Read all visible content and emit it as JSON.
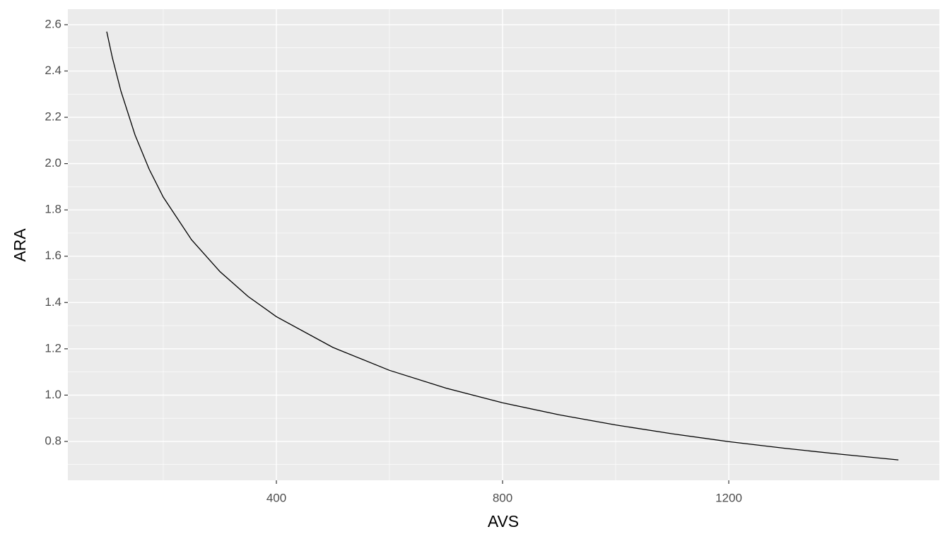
{
  "chart_data": {
    "type": "line",
    "x_label": "AVS",
    "y_label": "ARA",
    "x": [
      100,
      110,
      125,
      150,
      175,
      200,
      250,
      300,
      350,
      400,
      500,
      600,
      700,
      800,
      900,
      1000,
      1100,
      1200,
      1300,
      1400,
      1500
    ],
    "series": [
      {
        "name": "ARA",
        "color": "#000000",
        "values": [
          2.57,
          2.457,
          2.314,
          2.124,
          1.976,
          1.855,
          1.671,
          1.534,
          1.426,
          1.339,
          1.206,
          1.107,
          1.03,
          0.967,
          0.915,
          0.871,
          0.833,
          0.799,
          0.77,
          0.744,
          0.72
        ]
      }
    ],
    "xlim": [
      31.25,
      1572.5
    ],
    "ylim": [
      0.632,
      2.667
    ],
    "xticks": [
      400,
      800,
      1200
    ],
    "yticks": [
      0.8,
      {
        "value": 1,
        "label": "1.0"
      },
      1.2,
      1.4,
      1.6,
      1.8,
      {
        "value": 2,
        "label": "2.0"
      },
      2.2,
      2.4,
      2.6
    ],
    "grid": true,
    "panel_color": "#ebebeb"
  }
}
